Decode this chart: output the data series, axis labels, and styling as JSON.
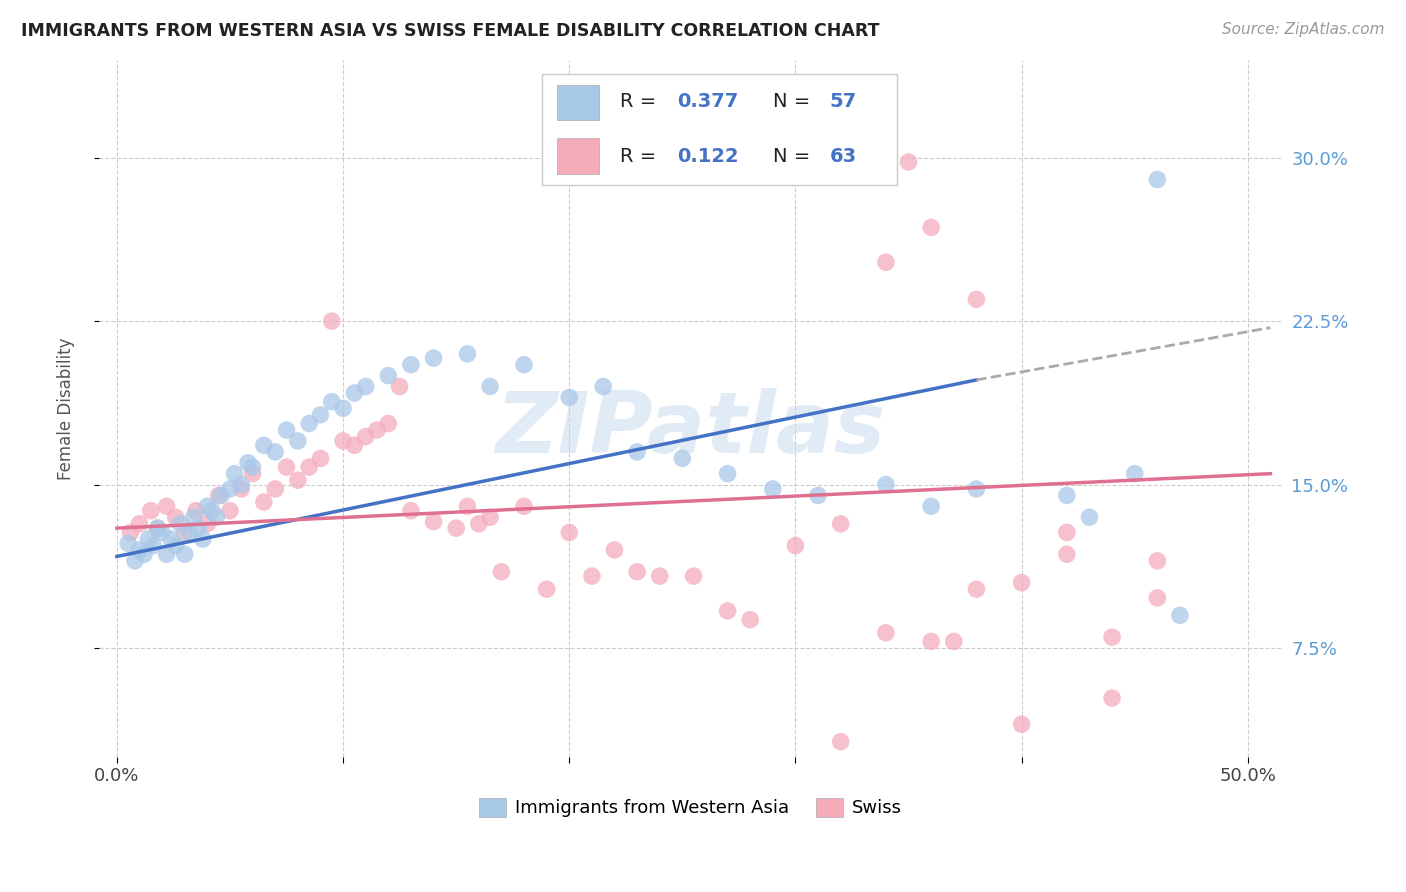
{
  "title": "IMMIGRANTS FROM WESTERN ASIA VS SWISS FEMALE DISABILITY CORRELATION CHART",
  "source": "Source: ZipAtlas.com",
  "ylabel": "Female Disability",
  "ytick_values": [
    0.075,
    0.15,
    0.225,
    0.3
  ],
  "ytick_labels": [
    "7.5%",
    "15.0%",
    "22.5%",
    "30.0%"
  ],
  "xtick_values": [
    0.0,
    0.1,
    0.2,
    0.3,
    0.4,
    0.5
  ],
  "xtick_labels": [
    "0.0%",
    "",
    "",
    "",
    "",
    "50.0%"
  ],
  "xlim": [
    -0.008,
    0.515
  ],
  "ylim": [
    0.025,
    0.345
  ],
  "color_blue": "#A8C8E8",
  "color_pink": "#F4ACBB",
  "line_blue": "#4472C4",
  "line_pink": "#E07090",
  "line_dash_color": "#AAAAAA",
  "watermark": "ZIPatlas",
  "blue_x": [
    0.005,
    0.008,
    0.01,
    0.012,
    0.014,
    0.016,
    0.018,
    0.02,
    0.022,
    0.024,
    0.026,
    0.028,
    0.03,
    0.032,
    0.034,
    0.036,
    0.038,
    0.04,
    0.042,
    0.044,
    0.046,
    0.05,
    0.052,
    0.055,
    0.058,
    0.06,
    0.065,
    0.07,
    0.075,
    0.08,
    0.085,
    0.09,
    0.095,
    0.1,
    0.105,
    0.11,
    0.12,
    0.13,
    0.14,
    0.155,
    0.165,
    0.18,
    0.2,
    0.215,
    0.23,
    0.25,
    0.27,
    0.29,
    0.31,
    0.34,
    0.36,
    0.38,
    0.42,
    0.43,
    0.45,
    0.46,
    0.47
  ],
  "blue_y": [
    0.123,
    0.115,
    0.12,
    0.118,
    0.125,
    0.122,
    0.13,
    0.128,
    0.118,
    0.125,
    0.122,
    0.132,
    0.118,
    0.128,
    0.135,
    0.13,
    0.125,
    0.14,
    0.138,
    0.135,
    0.145,
    0.148,
    0.155,
    0.15,
    0.16,
    0.158,
    0.168,
    0.165,
    0.175,
    0.17,
    0.178,
    0.182,
    0.188,
    0.185,
    0.192,
    0.195,
    0.2,
    0.205,
    0.208,
    0.21,
    0.195,
    0.205,
    0.19,
    0.195,
    0.165,
    0.162,
    0.155,
    0.148,
    0.145,
    0.15,
    0.14,
    0.148,
    0.145,
    0.135,
    0.155,
    0.29,
    0.09
  ],
  "pink_x": [
    0.006,
    0.01,
    0.015,
    0.018,
    0.022,
    0.026,
    0.03,
    0.035,
    0.04,
    0.045,
    0.05,
    0.055,
    0.06,
    0.065,
    0.07,
    0.075,
    0.08,
    0.085,
    0.09,
    0.095,
    0.1,
    0.105,
    0.11,
    0.115,
    0.12,
    0.125,
    0.13,
    0.14,
    0.15,
    0.155,
    0.16,
    0.165,
    0.17,
    0.18,
    0.19,
    0.2,
    0.21,
    0.22,
    0.23,
    0.24,
    0.255,
    0.27,
    0.28,
    0.3,
    0.32,
    0.34,
    0.36,
    0.38,
    0.4,
    0.42,
    0.44,
    0.46,
    0.34,
    0.36,
    0.38,
    0.4,
    0.42,
    0.44,
    0.46,
    0.32,
    0.35,
    0.37,
    0.3
  ],
  "pink_y": [
    0.128,
    0.132,
    0.138,
    0.13,
    0.14,
    0.135,
    0.128,
    0.138,
    0.132,
    0.145,
    0.138,
    0.148,
    0.155,
    0.142,
    0.148,
    0.158,
    0.152,
    0.158,
    0.162,
    0.225,
    0.17,
    0.168,
    0.172,
    0.175,
    0.178,
    0.195,
    0.138,
    0.133,
    0.13,
    0.14,
    0.132,
    0.135,
    0.11,
    0.14,
    0.102,
    0.128,
    0.108,
    0.12,
    0.11,
    0.108,
    0.108,
    0.092,
    0.088,
    0.122,
    0.132,
    0.252,
    0.268,
    0.235,
    0.105,
    0.118,
    0.08,
    0.115,
    0.082,
    0.078,
    0.102,
    0.04,
    0.128,
    0.052,
    0.098,
    0.032,
    0.298,
    0.078,
    0.3
  ],
  "blue_line_start_x": 0.0,
  "blue_line_end_x": 0.38,
  "blue_line_dash_start_x": 0.38,
  "blue_line_dash_end_x": 0.51,
  "blue_line_start_y": 0.117,
  "blue_line_end_y": 0.198,
  "blue_line_dash_end_y": 0.222,
  "pink_line_start_x": 0.0,
  "pink_line_end_x": 0.51,
  "pink_line_start_y": 0.13,
  "pink_line_end_y": 0.155
}
